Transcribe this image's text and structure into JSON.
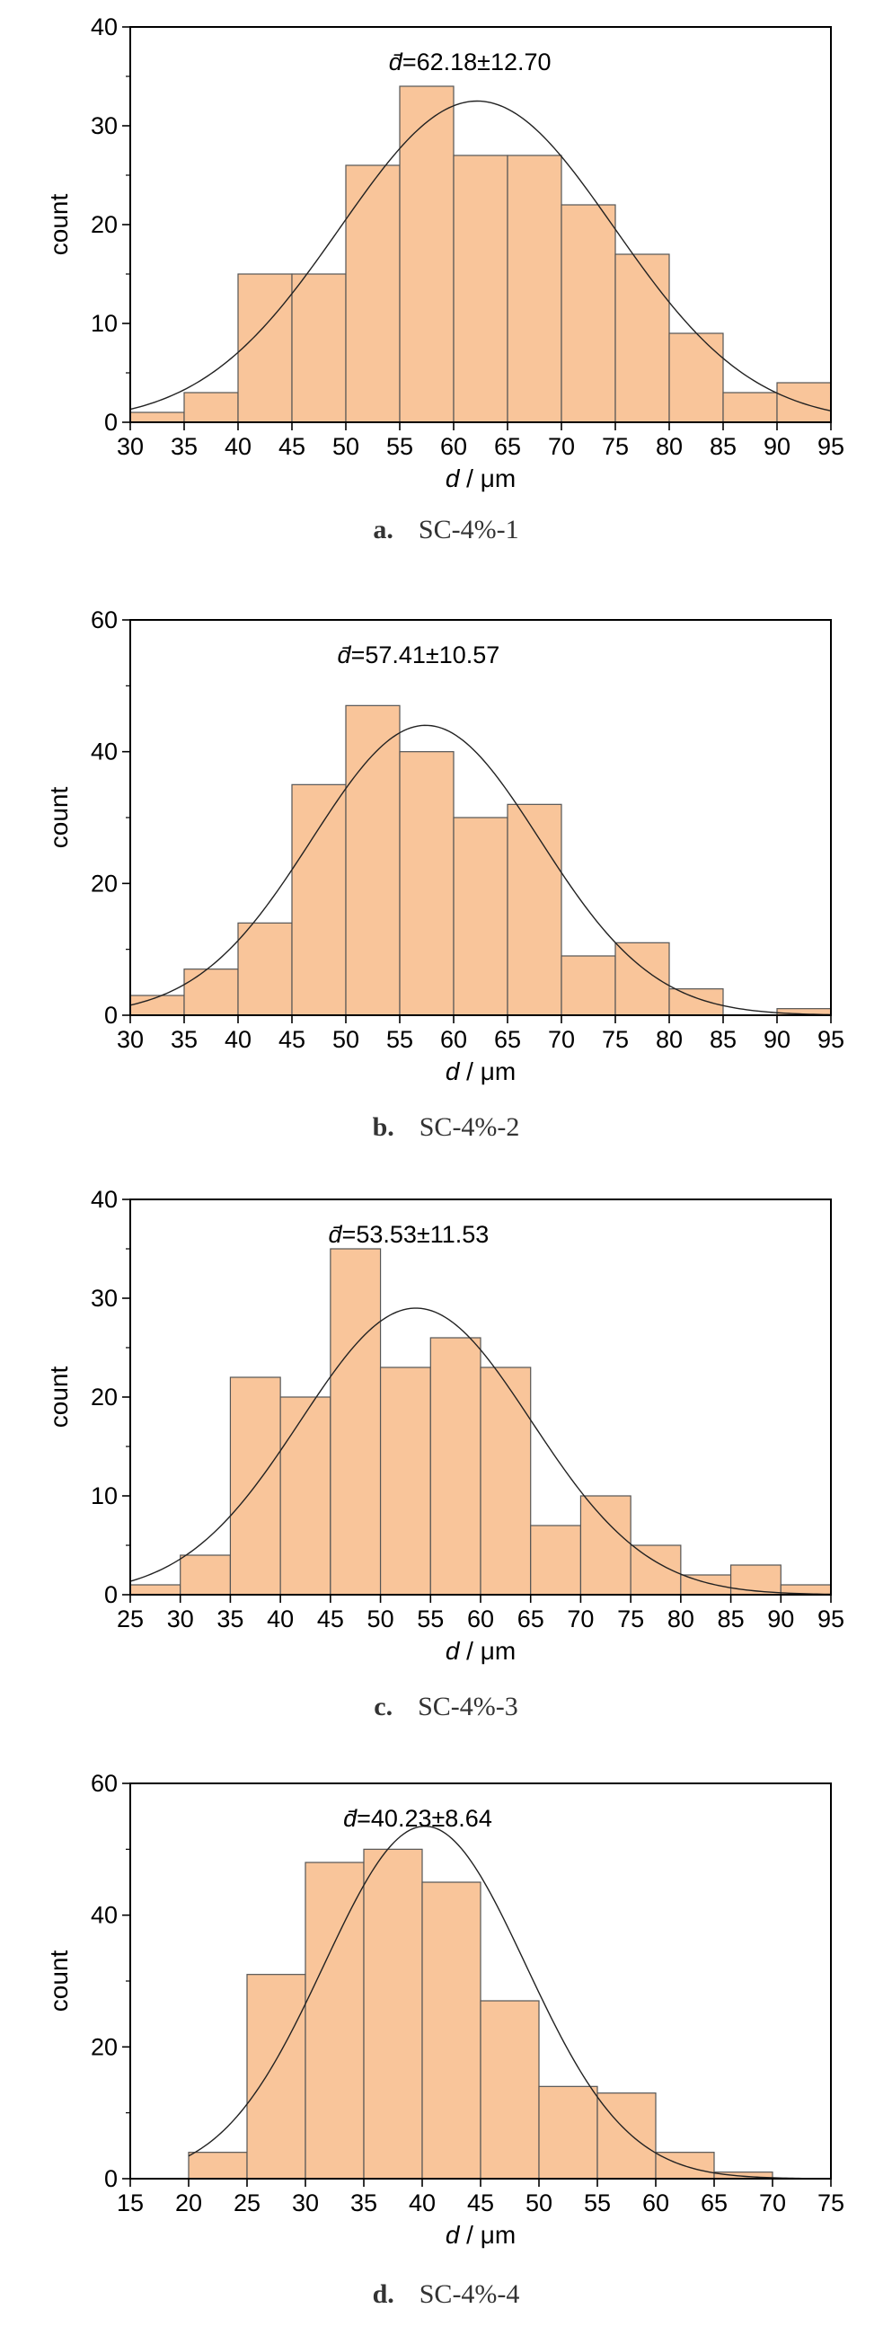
{
  "colors": {
    "bar_fill": "#f9c59a",
    "bar_stroke": "#555555",
    "curve": "#222222",
    "frame": "#000000"
  },
  "chart_data": [
    {
      "type": "bar",
      "subtype": "histogram",
      "annotation": "d̄=62.18±12.70",
      "xlabel": "d / μm",
      "ylabel": "count",
      "caption_letter": "a.",
      "caption_text": "SC-4%-1",
      "xlim": [
        30,
        95
      ],
      "ylim": [
        0,
        40
      ],
      "xticks": [
        30,
        35,
        40,
        45,
        50,
        55,
        60,
        65,
        70,
        75,
        80,
        85,
        90,
        95
      ],
      "yticks": [
        0,
        10,
        20,
        30,
        40
      ],
      "bin_edges": [
        30,
        35,
        40,
        45,
        50,
        55,
        60,
        65,
        70,
        75,
        80,
        85,
        90,
        95
      ],
      "values": [
        1,
        3,
        15,
        15,
        26,
        34,
        27,
        27,
        22,
        17,
        9,
        3,
        4
      ],
      "fit": {
        "mean": 62.18,
        "sd": 12.7,
        "peak": 32.5
      }
    },
    {
      "type": "bar",
      "subtype": "histogram",
      "annotation": "d̄=57.41±10.57",
      "xlabel": "d / μm",
      "ylabel": "count",
      "caption_letter": "b.",
      "caption_text": "SC-4%-2",
      "xlim": [
        30,
        95
      ],
      "ylim": [
        0,
        60
      ],
      "xticks": [
        30,
        35,
        40,
        45,
        50,
        55,
        60,
        65,
        70,
        75,
        80,
        85,
        90,
        95
      ],
      "yticks": [
        0,
        20,
        40,
        60
      ],
      "bin_edges": [
        30,
        35,
        40,
        45,
        50,
        55,
        60,
        65,
        70,
        75,
        80,
        85,
        90,
        95
      ],
      "values": [
        3,
        7,
        14,
        35,
        47,
        40,
        30,
        32,
        9,
        11,
        4,
        0,
        1
      ],
      "fit": {
        "mean": 57.41,
        "sd": 10.57,
        "peak": 44
      }
    },
    {
      "type": "bar",
      "subtype": "histogram",
      "annotation": "d̄=53.53±11.53",
      "xlabel": "d / μm",
      "ylabel": "count",
      "caption_letter": "c.",
      "caption_text": "SC-4%-3",
      "xlim": [
        25,
        95
      ],
      "ylim": [
        0,
        40
      ],
      "xticks": [
        25,
        30,
        35,
        40,
        45,
        50,
        55,
        60,
        65,
        70,
        75,
        80,
        85,
        90,
        95
      ],
      "yticks": [
        0,
        10,
        20,
        30,
        40
      ],
      "bin_edges": [
        25,
        30,
        35,
        40,
        45,
        50,
        55,
        60,
        65,
        70,
        75,
        80,
        85,
        90,
        95
      ],
      "values": [
        1,
        4,
        22,
        20,
        35,
        23,
        26,
        23,
        7,
        10,
        5,
        2,
        3,
        1
      ],
      "fit": {
        "mean": 53.53,
        "sd": 11.53,
        "peak": 29
      }
    },
    {
      "type": "bar",
      "subtype": "histogram",
      "annotation": "d̄=40.23±8.64",
      "xlabel": "d / μm",
      "ylabel": "count",
      "caption_letter": "d.",
      "caption_text": "SC-4%-4",
      "xlim": [
        15,
        75
      ],
      "ylim": [
        0,
        60
      ],
      "xticks": [
        15,
        20,
        25,
        30,
        35,
        40,
        45,
        50,
        55,
        60,
        65,
        70,
        75
      ],
      "yticks": [
        0,
        20,
        40,
        60
      ],
      "bin_edges": [
        20,
        25,
        30,
        35,
        40,
        45,
        50,
        55,
        60,
        65,
        70
      ],
      "values": [
        4,
        31,
        48,
        50,
        45,
        27,
        14,
        13,
        4,
        1
      ],
      "fit": {
        "mean": 40.23,
        "sd": 8.64,
        "peak": 53.5,
        "x_start": 20
      }
    }
  ]
}
